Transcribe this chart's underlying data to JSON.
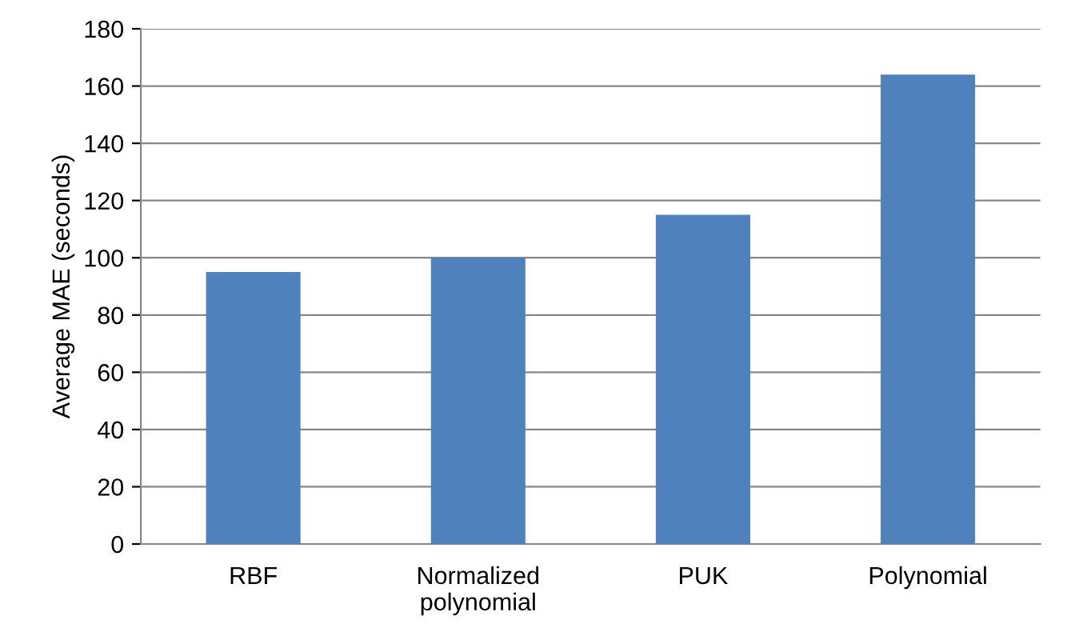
{
  "chart_data": {
    "type": "bar",
    "ylabel": "Average MAE (seconds)",
    "categories": [
      "RBF",
      "Normalized polynomial",
      "PUK",
      "Polynomial"
    ],
    "values": [
      95,
      100,
      115,
      164
    ],
    "color": "#4f81bd",
    "ylim": [
      0,
      180
    ],
    "yticks": [
      0,
      20,
      40,
      60,
      80,
      100,
      120,
      140,
      160,
      180
    ],
    "grid": "y",
    "legend": false
  }
}
